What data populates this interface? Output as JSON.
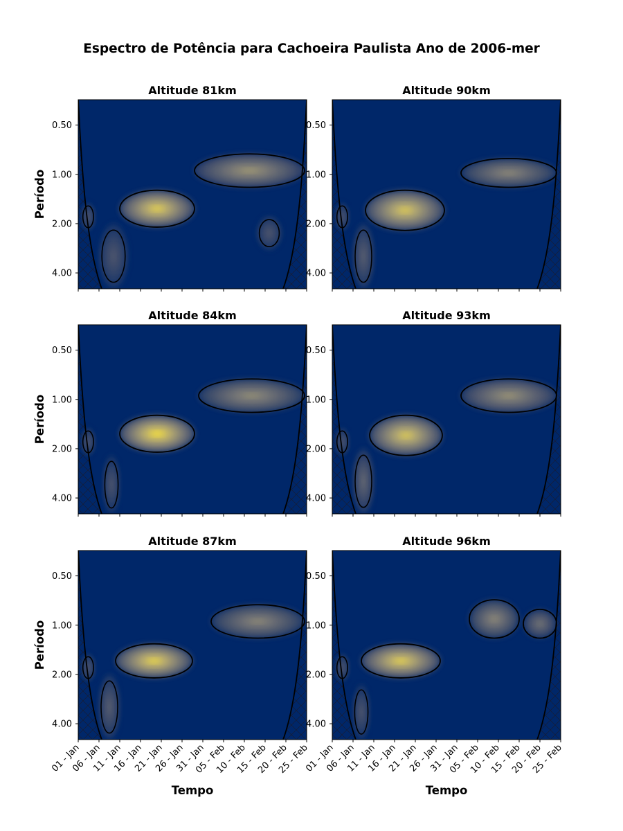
{
  "figure": {
    "title": "Espectro de Potência para Cachoeira Paulista Ano de 2006-mer"
  },
  "chart_data": [
    {
      "type": "heatmap",
      "title": "Altitude 81km",
      "xlabel": "",
      "ylabel": "Período",
      "x_ticks": [
        "01 - Jan",
        "06 - Jan",
        "11 - Jan",
        "16 - Jan",
        "21 - Jan",
        "26 - Jan",
        "31 - Jan",
        "05 - Feb",
        "10 - Feb",
        "15 - Feb",
        "20 - Feb",
        "25 - Feb"
      ],
      "y_ticks": [
        "0.50",
        "1.00",
        "2.00",
        "4.00"
      ],
      "y_scale": "log2",
      "x_range_days": [
        0,
        55
      ],
      "y_range": [
        0.35,
        5.0
      ],
      "colormap": "cividis",
      "blobs": [
        {
          "x": [
            10,
            28
          ],
          "y": [
            1.25,
            2.1
          ],
          "peak": 0.88
        },
        {
          "x": [
            28,
            54.5
          ],
          "y": [
            0.75,
            1.2
          ],
          "peak": 0.62
        },
        {
          "x": [
            5,
            12
          ],
          "y": [
            2.0,
            5.0
          ],
          "peak": 0.3
        },
        {
          "x": [
            0.8,
            4
          ],
          "y": [
            1.5,
            2.2
          ],
          "peak": 0.3
        },
        {
          "x": [
            43,
            49
          ],
          "y": [
            1.8,
            2.9
          ],
          "peak": 0.3
        }
      ]
    },
    {
      "type": "heatmap",
      "title": "Altitude 90km",
      "xlabel": "",
      "ylabel": "",
      "x_ticks": [
        "01 - Jan",
        "06 - Jan",
        "11 - Jan",
        "16 - Jan",
        "21 - Jan",
        "26 - Jan",
        "31 - Jan",
        "05 - Feb",
        "10 - Feb",
        "15 - Feb",
        "20 - Feb",
        "25 - Feb"
      ],
      "y_ticks": [
        "0.50",
        "1.00",
        "2.00",
        "4.00"
      ],
      "y_scale": "log2",
      "x_range_days": [
        0,
        55
      ],
      "y_range": [
        0.35,
        5.0
      ],
      "colormap": "cividis",
      "blobs": [
        {
          "x": [
            8,
            27
          ],
          "y": [
            1.25,
            2.2
          ],
          "peak": 0.85
        },
        {
          "x": [
            31,
            54
          ],
          "y": [
            0.8,
            1.2
          ],
          "peak": 0.55
        },
        {
          "x": [
            5,
            10
          ],
          "y": [
            2.0,
            5.0
          ],
          "peak": 0.35
        },
        {
          "x": [
            0.8,
            4
          ],
          "y": [
            1.5,
            2.2
          ],
          "peak": 0.3
        }
      ]
    },
    {
      "type": "heatmap",
      "title": "Altitude 84km",
      "xlabel": "",
      "ylabel": "Período",
      "x_ticks": [
        "01 - Jan",
        "06 - Jan",
        "11 - Jan",
        "16 - Jan",
        "21 - Jan",
        "26 - Jan",
        "31 - Jan",
        "05 - Feb",
        "10 - Feb",
        "15 - Feb",
        "20 - Feb",
        "25 - Feb"
      ],
      "y_ticks": [
        "0.50",
        "1.00",
        "2.00",
        "4.00"
      ],
      "y_scale": "log2",
      "x_range_days": [
        0,
        55
      ],
      "y_range": [
        0.35,
        5.0
      ],
      "colormap": "cividis",
      "blobs": [
        {
          "x": [
            10,
            28
          ],
          "y": [
            1.25,
            2.1
          ],
          "peak": 0.95
        },
        {
          "x": [
            29,
            54.5
          ],
          "y": [
            0.75,
            1.2
          ],
          "peak": 0.58
        },
        {
          "x": [
            6,
            10
          ],
          "y": [
            2.2,
            5.0
          ],
          "peak": 0.3
        },
        {
          "x": [
            0.8,
            4
          ],
          "y": [
            1.5,
            2.2
          ],
          "peak": 0.3
        }
      ]
    },
    {
      "type": "heatmap",
      "title": "Altitude 93km",
      "xlabel": "",
      "ylabel": "",
      "x_ticks": [
        "01 - Jan",
        "06 - Jan",
        "11 - Jan",
        "16 - Jan",
        "21 - Jan",
        "26 - Jan",
        "31 - Jan",
        "05 - Feb",
        "10 - Feb",
        "15 - Feb",
        "20 - Feb",
        "25 - Feb"
      ],
      "y_ticks": [
        "0.50",
        "1.00",
        "2.00",
        "4.00"
      ],
      "y_scale": "log2",
      "x_range_days": [
        0,
        55
      ],
      "y_range": [
        0.35,
        5.0
      ],
      "colormap": "cividis",
      "blobs": [
        {
          "x": [
            9,
            26.5
          ],
          "y": [
            1.25,
            2.2
          ],
          "peak": 0.85
        },
        {
          "x": [
            31,
            54
          ],
          "y": [
            0.75,
            1.2
          ],
          "peak": 0.6
        },
        {
          "x": [
            5,
            10
          ],
          "y": [
            2.0,
            5.0
          ],
          "peak": 0.4
        },
        {
          "x": [
            0.8,
            4
          ],
          "y": [
            1.5,
            2.2
          ],
          "peak": 0.3
        }
      ]
    },
    {
      "type": "heatmap",
      "title": "Altitude 87km",
      "xlabel": "Tempo",
      "ylabel": "Período",
      "x_ticks": [
        "01 - Jan",
        "06 - Jan",
        "11 - Jan",
        "16 - Jan",
        "21 - Jan",
        "26 - Jan",
        "31 - Jan",
        "05 - Feb",
        "10 - Feb",
        "15 - Feb",
        "20 - Feb",
        "25 - Feb"
      ],
      "y_ticks": [
        "0.50",
        "1.00",
        "2.00",
        "4.00"
      ],
      "y_scale": "log2",
      "x_range_days": [
        0,
        55
      ],
      "y_range": [
        0.35,
        5.0
      ],
      "colormap": "cividis",
      "blobs": [
        {
          "x": [
            9,
            27.5
          ],
          "y": [
            1.3,
            2.1
          ],
          "peak": 0.9
        },
        {
          "x": [
            32,
            54.5
          ],
          "y": [
            0.75,
            1.2
          ],
          "peak": 0.55
        },
        {
          "x": [
            5,
            10
          ],
          "y": [
            2.0,
            5.0
          ],
          "peak": 0.35
        },
        {
          "x": [
            0.8,
            4
          ],
          "y": [
            1.5,
            2.2
          ],
          "peak": 0.3
        }
      ]
    },
    {
      "type": "heatmap",
      "title": "Altitude 96km",
      "xlabel": "Tempo",
      "ylabel": "",
      "x_ticks": [
        "01 - Jan",
        "06 - Jan",
        "11 - Jan",
        "16 - Jan",
        "21 - Jan",
        "26 - Jan",
        "31 - Jan",
        "05 - Feb",
        "10 - Feb",
        "15 - Feb",
        "20 - Feb",
        "25 - Feb"
      ],
      "y_ticks": [
        "0.50",
        "1.00",
        "2.00",
        "4.00"
      ],
      "y_scale": "log2",
      "x_range_days": [
        0,
        55
      ],
      "y_range": [
        0.35,
        5.0
      ],
      "colormap": "cividis",
      "blobs": [
        {
          "x": [
            7,
            26
          ],
          "y": [
            1.3,
            2.1
          ],
          "peak": 0.88
        },
        {
          "x": [
            33,
            45
          ],
          "y": [
            0.7,
            1.2
          ],
          "peak": 0.55
        },
        {
          "x": [
            46,
            54
          ],
          "y": [
            0.8,
            1.2
          ],
          "peak": 0.45
        },
        {
          "x": [
            5,
            9
          ],
          "y": [
            2.3,
            5.0
          ],
          "peak": 0.3
        },
        {
          "x": [
            0.8,
            4
          ],
          "y": [
            1.5,
            2.2
          ],
          "peak": 0.3
        }
      ]
    }
  ]
}
